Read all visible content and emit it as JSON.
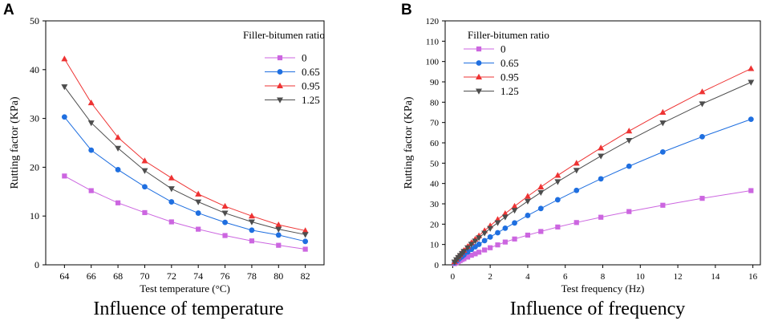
{
  "colors": {
    "s0": "#cc66e0",
    "s065": "#1f6fe0",
    "s095": "#ee3333",
    "s125": "#4d4d4d",
    "axis": "#000000"
  },
  "chart_data": [
    {
      "panel_label": "A",
      "caption": "Influence of temperature",
      "type": "line",
      "xlabel": "Test temperature (°C)",
      "ylabel": "Rutting factor (KPa)",
      "xlim": [
        62.6,
        83.4
      ],
      "ylim": [
        0,
        50
      ],
      "xticks": [
        64,
        66,
        68,
        70,
        72,
        74,
        76,
        78,
        80,
        82
      ],
      "yticks": [
        0,
        10,
        20,
        30,
        40,
        50
      ],
      "legend_title": "Filler-bitumen ratio",
      "legend_position": "top-right",
      "series": [
        {
          "name": "0",
          "x": [
            64,
            66,
            68,
            70,
            72,
            74,
            76,
            78,
            80,
            82
          ],
          "values": [
            18.2,
            15.2,
            12.7,
            10.7,
            8.8,
            7.3,
            6.0,
            4.9,
            4.0,
            3.2
          ]
        },
        {
          "name": "0.65",
          "x": [
            64,
            66,
            68,
            70,
            72,
            74,
            76,
            78,
            80,
            82
          ],
          "values": [
            30.3,
            23.5,
            19.5,
            16.0,
            12.9,
            10.6,
            8.7,
            7.1,
            6.1,
            4.8
          ]
        },
        {
          "name": "0.95",
          "x": [
            64,
            66,
            68,
            70,
            72,
            74,
            76,
            78,
            80,
            82
          ],
          "values": [
            42.2,
            33.2,
            26.1,
            21.3,
            17.8,
            14.5,
            12.0,
            10.0,
            8.2,
            7.0
          ]
        },
        {
          "name": "1.25",
          "x": [
            64,
            66,
            68,
            70,
            72,
            74,
            76,
            78,
            80,
            82
          ],
          "values": [
            36.5,
            29.1,
            23.9,
            19.3,
            15.6,
            12.9,
            10.6,
            8.8,
            7.3,
            6.2
          ]
        }
      ]
    },
    {
      "panel_label": "B",
      "caption": "Influence of frequency",
      "type": "line",
      "xlabel": "Test frequency (Hz)",
      "ylabel": "Rutting factor (KPa)",
      "xlim": [
        -0.4,
        16.4
      ],
      "ylim": [
        0,
        120
      ],
      "xticks": [
        0,
        2,
        4,
        6,
        8,
        10,
        12,
        14,
        16
      ],
      "yticks": [
        0,
        10,
        20,
        30,
        40,
        50,
        60,
        70,
        80,
        90,
        100,
        110,
        120
      ],
      "legend_title": "Filler-bitumen ratio",
      "legend_position": "top-left",
      "series": [
        {
          "name": "0",
          "x": [
            0.1,
            0.2,
            0.3,
            0.4,
            0.5,
            0.6,
            0.8,
            1.0,
            1.2,
            1.4,
            1.7,
            2.0,
            2.4,
            2.8,
            3.3,
            4.0,
            4.7,
            5.6,
            6.6,
            7.9,
            9.4,
            11.2,
            13.3,
            15.9
          ],
          "values": [
            0.6,
            1.1,
            1.6,
            2.1,
            2.6,
            3.0,
            3.8,
            4.7,
            5.4,
            6.2,
            7.3,
            8.4,
            9.8,
            11.2,
            12.7,
            14.6,
            16.4,
            18.6,
            20.8,
            23.4,
            26.2,
            29.3,
            32.7,
            36.5
          ]
        },
        {
          "name": "0.65",
          "x": [
            0.1,
            0.2,
            0.3,
            0.4,
            0.5,
            0.6,
            0.8,
            1.0,
            1.2,
            1.4,
            1.7,
            2.0,
            2.4,
            2.8,
            3.3,
            4.0,
            4.7,
            5.6,
            6.6,
            7.9,
            9.4,
            11.2,
            13.3,
            15.9
          ],
          "values": [
            1.0,
            1.8,
            2.6,
            3.4,
            4.1,
            4.9,
            6.3,
            7.6,
            8.9,
            10.1,
            11.9,
            13.7,
            15.8,
            18.0,
            20.6,
            24.3,
            27.7,
            32.0,
            36.6,
            42.3,
            48.5,
            55.5,
            63.0,
            71.6
          ]
        },
        {
          "name": "0.95",
          "x": [
            0.1,
            0.2,
            0.3,
            0.4,
            0.5,
            0.6,
            0.8,
            1.0,
            1.2,
            1.4,
            1.7,
            2.0,
            2.4,
            2.8,
            3.3,
            4.0,
            4.7,
            5.6,
            6.6,
            7.9,
            9.4,
            11.2,
            13.3,
            15.9
          ],
          "values": [
            1.5,
            2.7,
            3.9,
            5.0,
            6.1,
            7.1,
            9.0,
            10.9,
            12.6,
            14.3,
            16.8,
            19.2,
            22.3,
            25.2,
            28.8,
            33.7,
            38.3,
            44.0,
            50.0,
            57.5,
            65.8,
            75.0,
            85.1,
            96.5
          ]
        },
        {
          "name": "1.25",
          "x": [
            0.1,
            0.2,
            0.3,
            0.4,
            0.5,
            0.6,
            0.8,
            1.0,
            1.2,
            1.4,
            1.7,
            2.0,
            2.4,
            2.8,
            3.3,
            4.0,
            4.7,
            5.6,
            6.6,
            7.9,
            9.4,
            11.2,
            13.3,
            15.9
          ],
          "values": [
            1.4,
            2.5,
            3.6,
            4.6,
            5.6,
            6.6,
            8.4,
            10.1,
            11.7,
            13.3,
            15.6,
            17.9,
            20.7,
            23.5,
            26.8,
            31.3,
            35.6,
            40.9,
            46.5,
            53.5,
            61.2,
            69.8,
            79.2,
            89.8
          ]
        }
      ]
    }
  ]
}
